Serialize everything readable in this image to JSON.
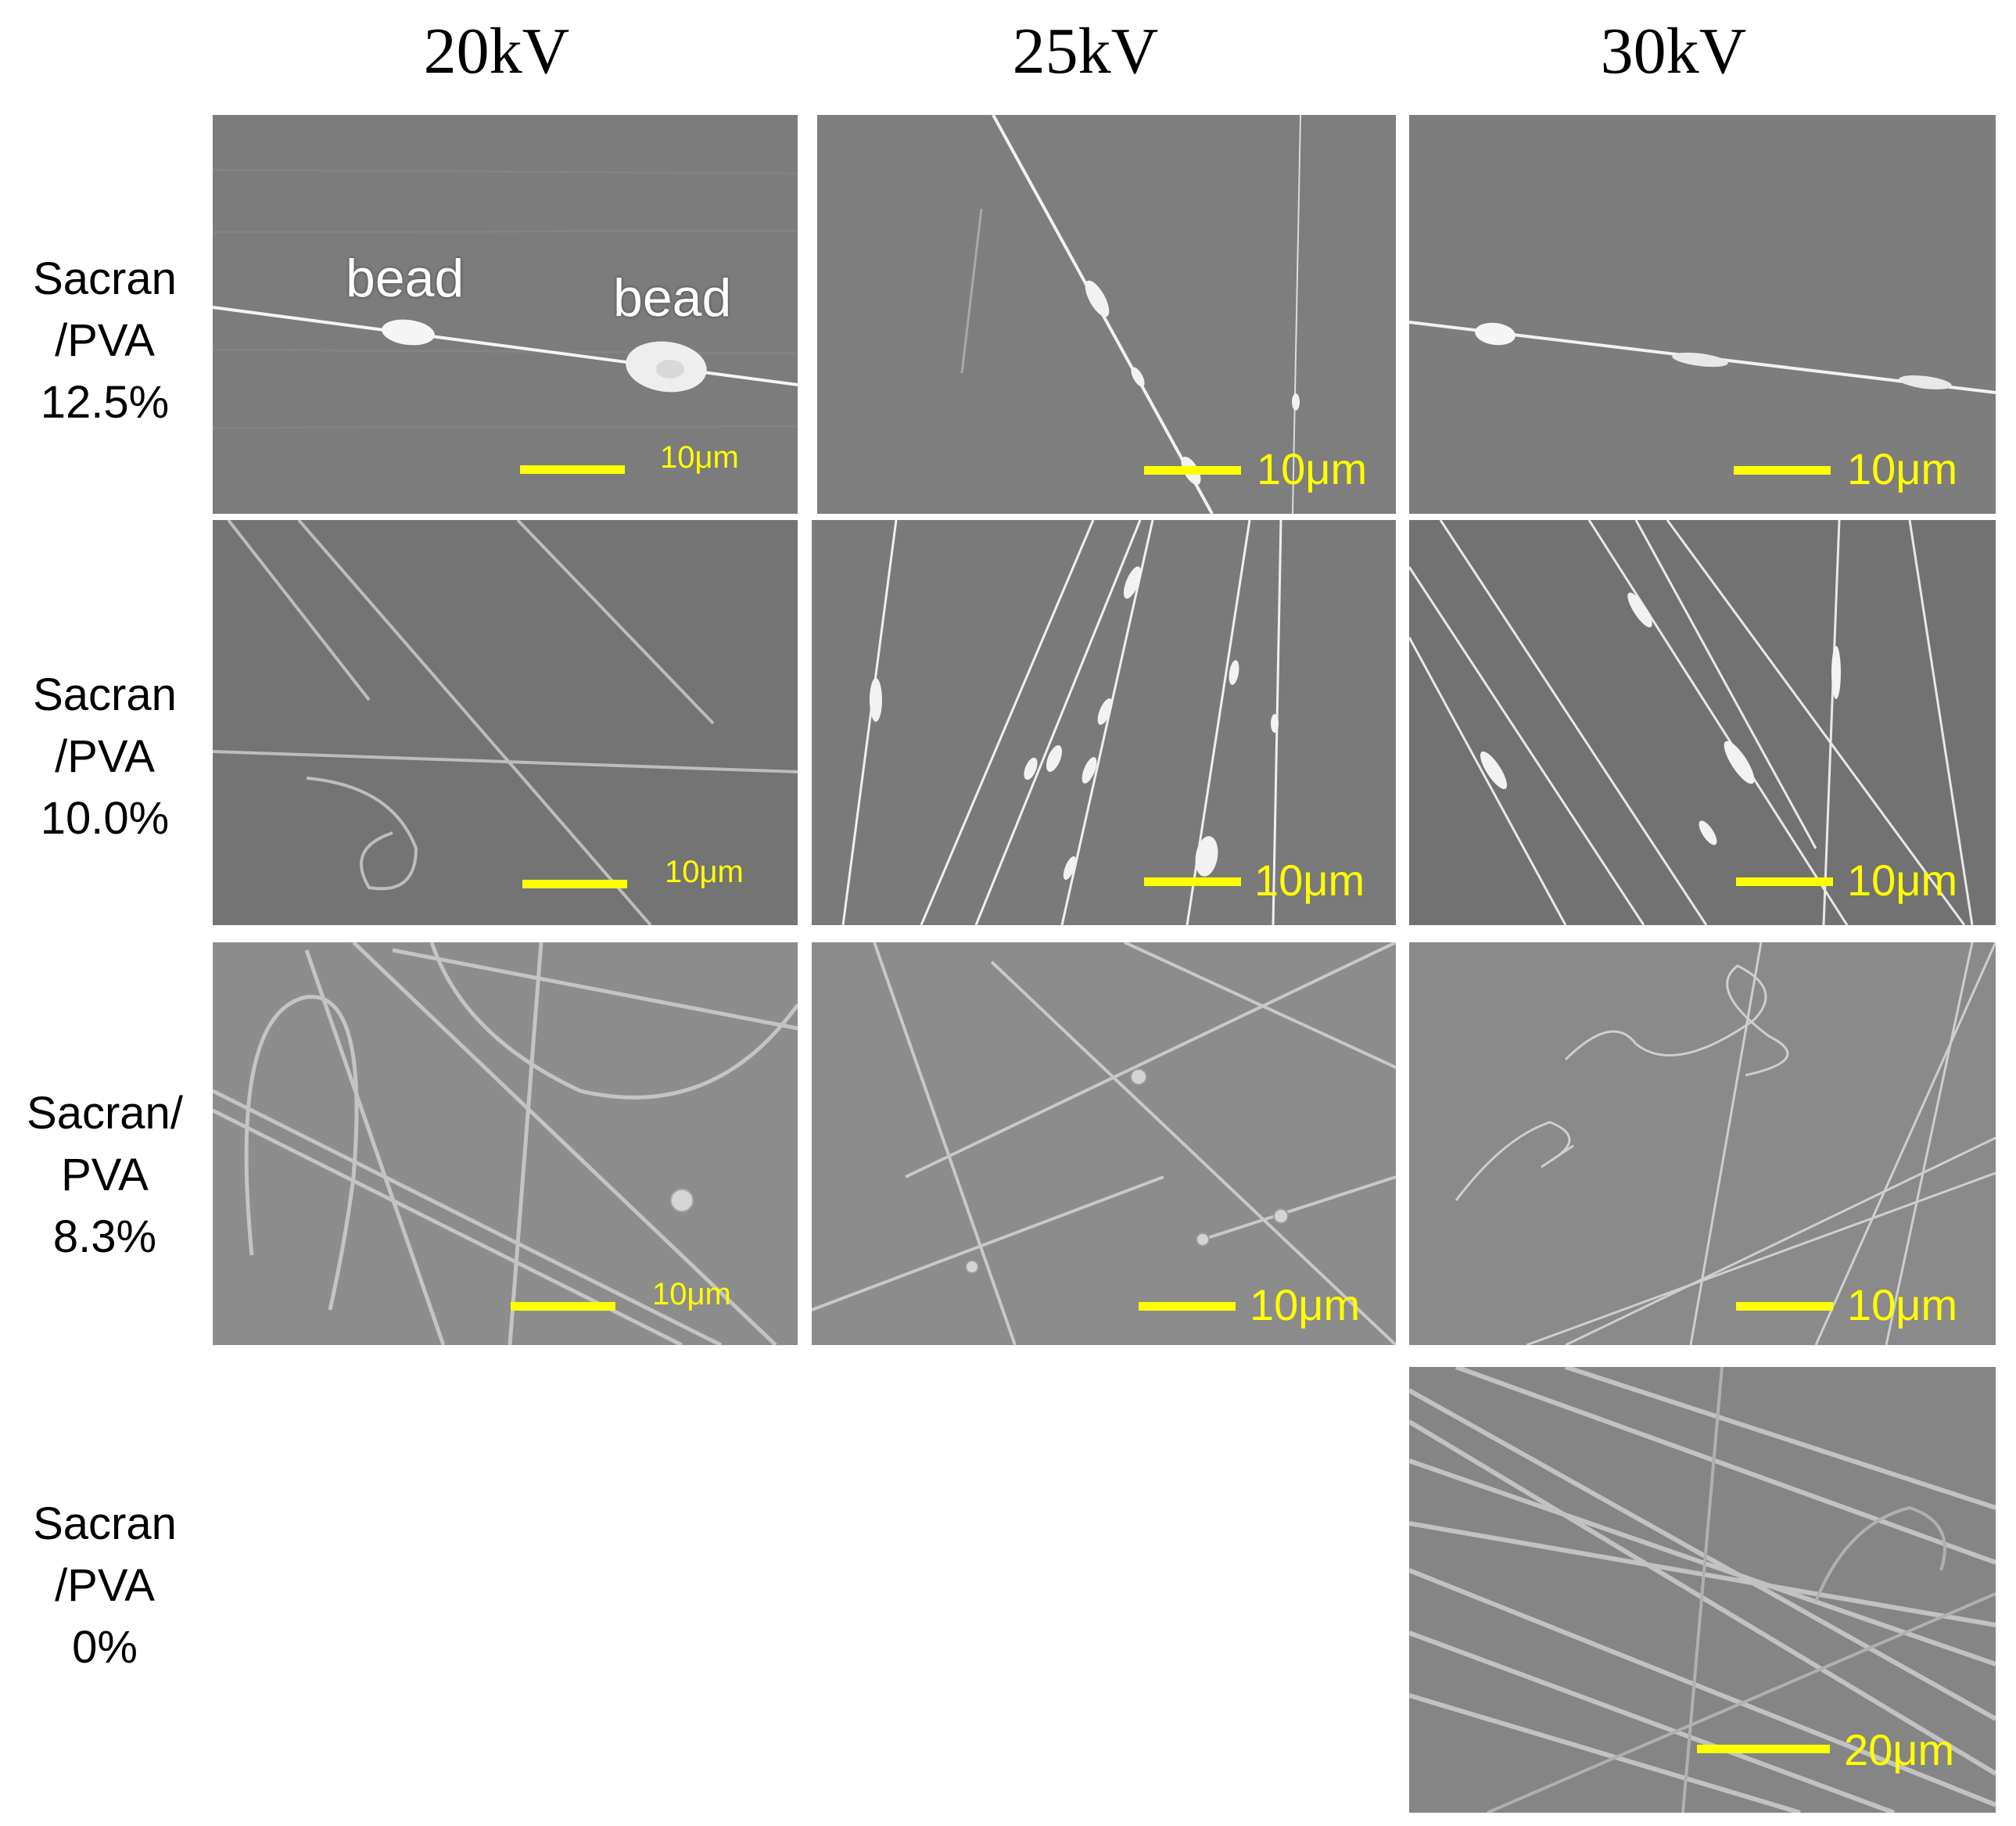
{
  "columns": [
    "20kV",
    "25kV",
    "30kV"
  ],
  "rows": [
    {
      "lines": [
        "Sacran",
        "/PVA",
        "12.5%"
      ]
    },
    {
      "lines": [
        "Sacran",
        "/PVA",
        "10.0%"
      ]
    },
    {
      "lines": [
        "Sacran/",
        "PVA",
        "8.3%"
      ]
    },
    {
      "lines": [
        "Sacran",
        "/PVA",
        "0%"
      ]
    }
  ],
  "panels": {
    "r1c1": {
      "scale": "10μm",
      "labels": [
        "bead",
        "bead"
      ]
    },
    "r1c2": {
      "scale": "10μm"
    },
    "r1c3": {
      "scale": "10μm"
    },
    "r2c1": {
      "scale": "10μm"
    },
    "r2c2": {
      "scale": "10μm"
    },
    "r2c3": {
      "scale": "10μm"
    },
    "r3c1": {
      "scale": "10μm"
    },
    "r3c2": {
      "scale": "10μm"
    },
    "r3c3": {
      "scale": "10μm"
    },
    "r4c3": {
      "scale": "20μm"
    }
  },
  "colors": {
    "scale_bar": "#ffff00",
    "fiber": "#f0f0f0",
    "background_gray": "#808080"
  }
}
